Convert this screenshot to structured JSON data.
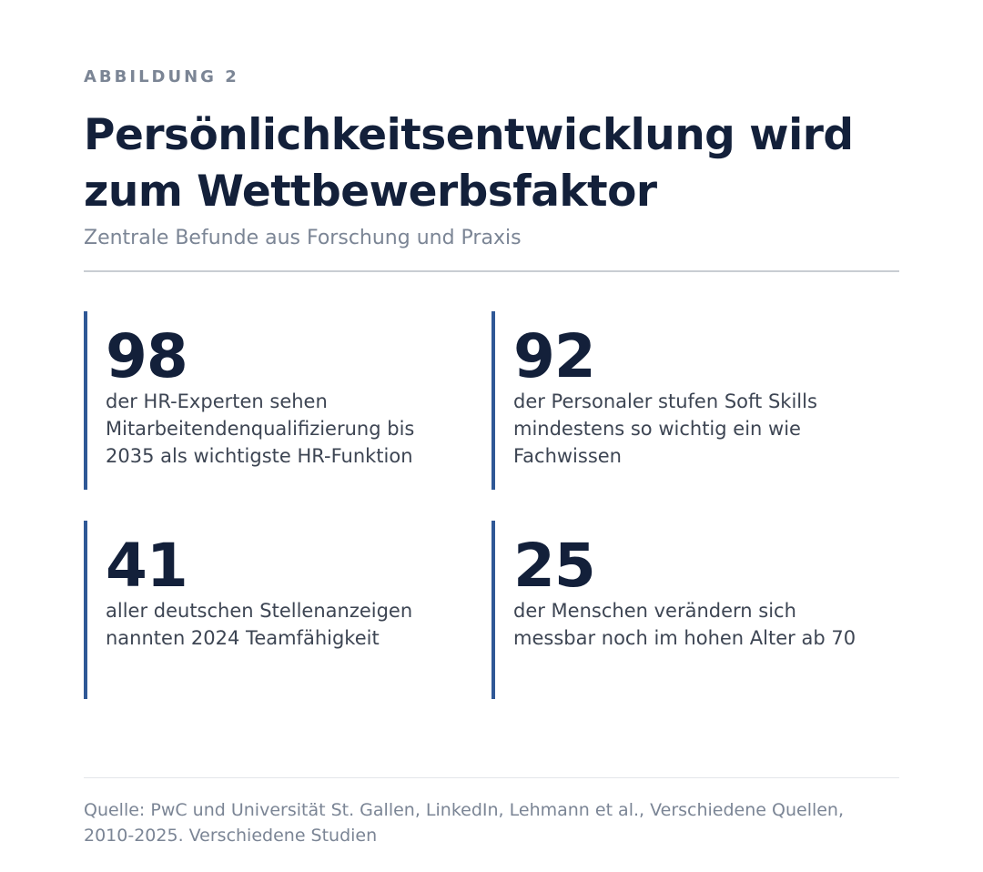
{
  "figure": {
    "eyebrow": "ABBILDUNG 2",
    "title_lines": [
      "Persönlichkeitsentwicklung wird",
      "zum Wettbewerbsfaktor"
    ],
    "subtitle": "Zentrale Befunde aus Forschung und Praxis"
  },
  "stats": [
    {
      "value": "98",
      "text_lines": [
        "der HR-Experten sehen",
        "Mitarbeitendenqualifizierung bis",
        "2035 als wichtigste HR-Funktion"
      ]
    },
    {
      "value": "92",
      "text_lines": [
        "der Personaler stufen Soft Skills",
        "mindestens so wichtig ein wie",
        "Fachwissen"
      ]
    },
    {
      "value": "41",
      "text_lines": [
        "aller deutschen Stellenanzeigen",
        "nannten 2024 Teamfähigkeit"
      ]
    },
    {
      "value": "25",
      "text_lines": [
        "der Menschen verändern sich",
        "messbar noch im hohen Alter ab 70"
      ]
    }
  ],
  "source_lines": [
    "Quelle: PwC und Universität St. Gallen, LinkedIn, Lehmann et al., Verschiedene Quellen,",
    "2010-2025. Verschiedene Studien"
  ],
  "colors": {
    "accent_bar": "#2f5896",
    "title": "#13203a",
    "muted": "#7b8595"
  }
}
